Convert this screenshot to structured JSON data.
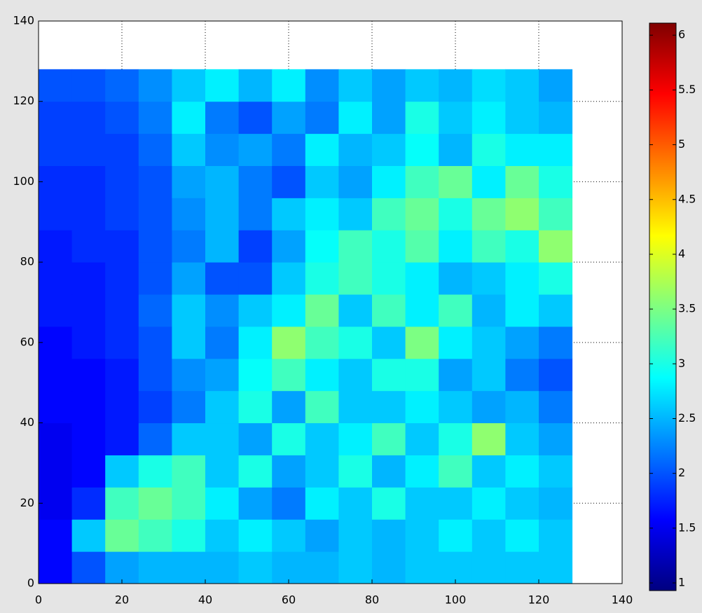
{
  "chart_data": {
    "type": "heatmap",
    "colormap": "jet",
    "grid": true,
    "xlim": [
      0,
      140
    ],
    "ylim": [
      0,
      140
    ],
    "xticks": [
      0,
      20,
      40,
      60,
      80,
      100,
      120,
      140
    ],
    "yticks": [
      0,
      20,
      40,
      60,
      80,
      100,
      120,
      140
    ],
    "x": [
      4,
      12,
      20,
      28,
      36,
      44,
      52,
      60,
      68,
      76,
      84,
      92,
      100,
      108,
      116,
      124
    ],
    "y": [
      4,
      12,
      20,
      28,
      36,
      44,
      52,
      60,
      68,
      76,
      84,
      92,
      100,
      108,
      116,
      124
    ],
    "z": [
      [
        1.6,
        2.0,
        2.4,
        2.5,
        2.5,
        2.5,
        2.6,
        2.5,
        2.5,
        2.6,
        2.5,
        2.6,
        2.6,
        2.6,
        2.6,
        2.6
      ],
      [
        1.6,
        2.6,
        3.4,
        3.2,
        3.0,
        2.6,
        2.8,
        2.6,
        2.4,
        2.6,
        2.5,
        2.6,
        2.8,
        2.6,
        2.8,
        2.6
      ],
      [
        1.5,
        1.8,
        3.2,
        3.4,
        3.2,
        2.8,
        2.4,
        2.2,
        2.8,
        2.6,
        3.0,
        2.6,
        2.6,
        2.8,
        2.6,
        2.5
      ],
      [
        1.5,
        1.6,
        2.6,
        3.0,
        3.2,
        2.6,
        3.0,
        2.4,
        2.6,
        3.0,
        2.5,
        2.8,
        3.2,
        2.6,
        2.8,
        2.6
      ],
      [
        1.5,
        1.6,
        1.7,
        2.1,
        2.6,
        2.6,
        2.4,
        3.0,
        2.6,
        2.8,
        3.2,
        2.6,
        3.0,
        3.6,
        2.6,
        2.4
      ],
      [
        1.6,
        1.6,
        1.7,
        1.9,
        2.2,
        2.6,
        3.0,
        2.4,
        3.2,
        2.6,
        2.6,
        2.8,
        2.6,
        2.4,
        2.5,
        2.2
      ],
      [
        1.6,
        1.6,
        1.7,
        2.0,
        2.3,
        2.4,
        2.9,
        3.2,
        2.8,
        2.6,
        3.0,
        3.0,
        2.4,
        2.6,
        2.2,
        2.0
      ],
      [
        1.6,
        1.7,
        1.8,
        2.0,
        2.6,
        2.2,
        2.8,
        3.6,
        3.2,
        3.0,
        2.6,
        3.5,
        2.8,
        2.6,
        2.4,
        2.2
      ],
      [
        1.7,
        1.7,
        1.8,
        2.1,
        2.6,
        2.3,
        2.6,
        2.8,
        3.4,
        2.6,
        3.2,
        2.8,
        3.2,
        2.5,
        2.8,
        2.6
      ],
      [
        1.7,
        1.7,
        1.8,
        2.0,
        2.4,
        2.0,
        2.0,
        2.6,
        3.0,
        3.2,
        3.0,
        2.8,
        2.5,
        2.6,
        2.8,
        3.0
      ],
      [
        1.7,
        1.8,
        1.8,
        2.0,
        2.2,
        2.5,
        1.9,
        2.4,
        2.9,
        3.2,
        3.0,
        3.3,
        2.8,
        3.2,
        3.0,
        3.6
      ],
      [
        1.8,
        1.8,
        1.9,
        2.0,
        2.3,
        2.5,
        2.2,
        2.6,
        2.8,
        2.6,
        3.2,
        3.4,
        3.0,
        3.4,
        3.6,
        3.2
      ],
      [
        1.8,
        1.8,
        1.9,
        2.0,
        2.4,
        2.5,
        2.2,
        2.0,
        2.6,
        2.4,
        2.8,
        3.2,
        3.4,
        2.8,
        3.4,
        3.0
      ],
      [
        1.9,
        1.9,
        1.9,
        2.1,
        2.6,
        2.3,
        2.4,
        2.2,
        2.8,
        2.5,
        2.6,
        2.9,
        2.5,
        3.0,
        2.8,
        2.8
      ],
      [
        1.9,
        1.9,
        2.0,
        2.2,
        2.8,
        2.2,
        2.0,
        2.4,
        2.2,
        2.8,
        2.4,
        3.0,
        2.6,
        2.8,
        2.6,
        2.5
      ],
      [
        2.0,
        2.0,
        2.1,
        2.3,
        2.6,
        2.8,
        2.5,
        2.8,
        2.3,
        2.6,
        2.4,
        2.6,
        2.5,
        2.7,
        2.6,
        2.4
      ]
    ],
    "clim": [
      0.93,
      6.11
    ],
    "cticks": [
      1,
      1.5,
      2,
      2.5,
      3,
      3.5,
      4,
      4.5,
      5,
      5.5,
      6
    ]
  }
}
